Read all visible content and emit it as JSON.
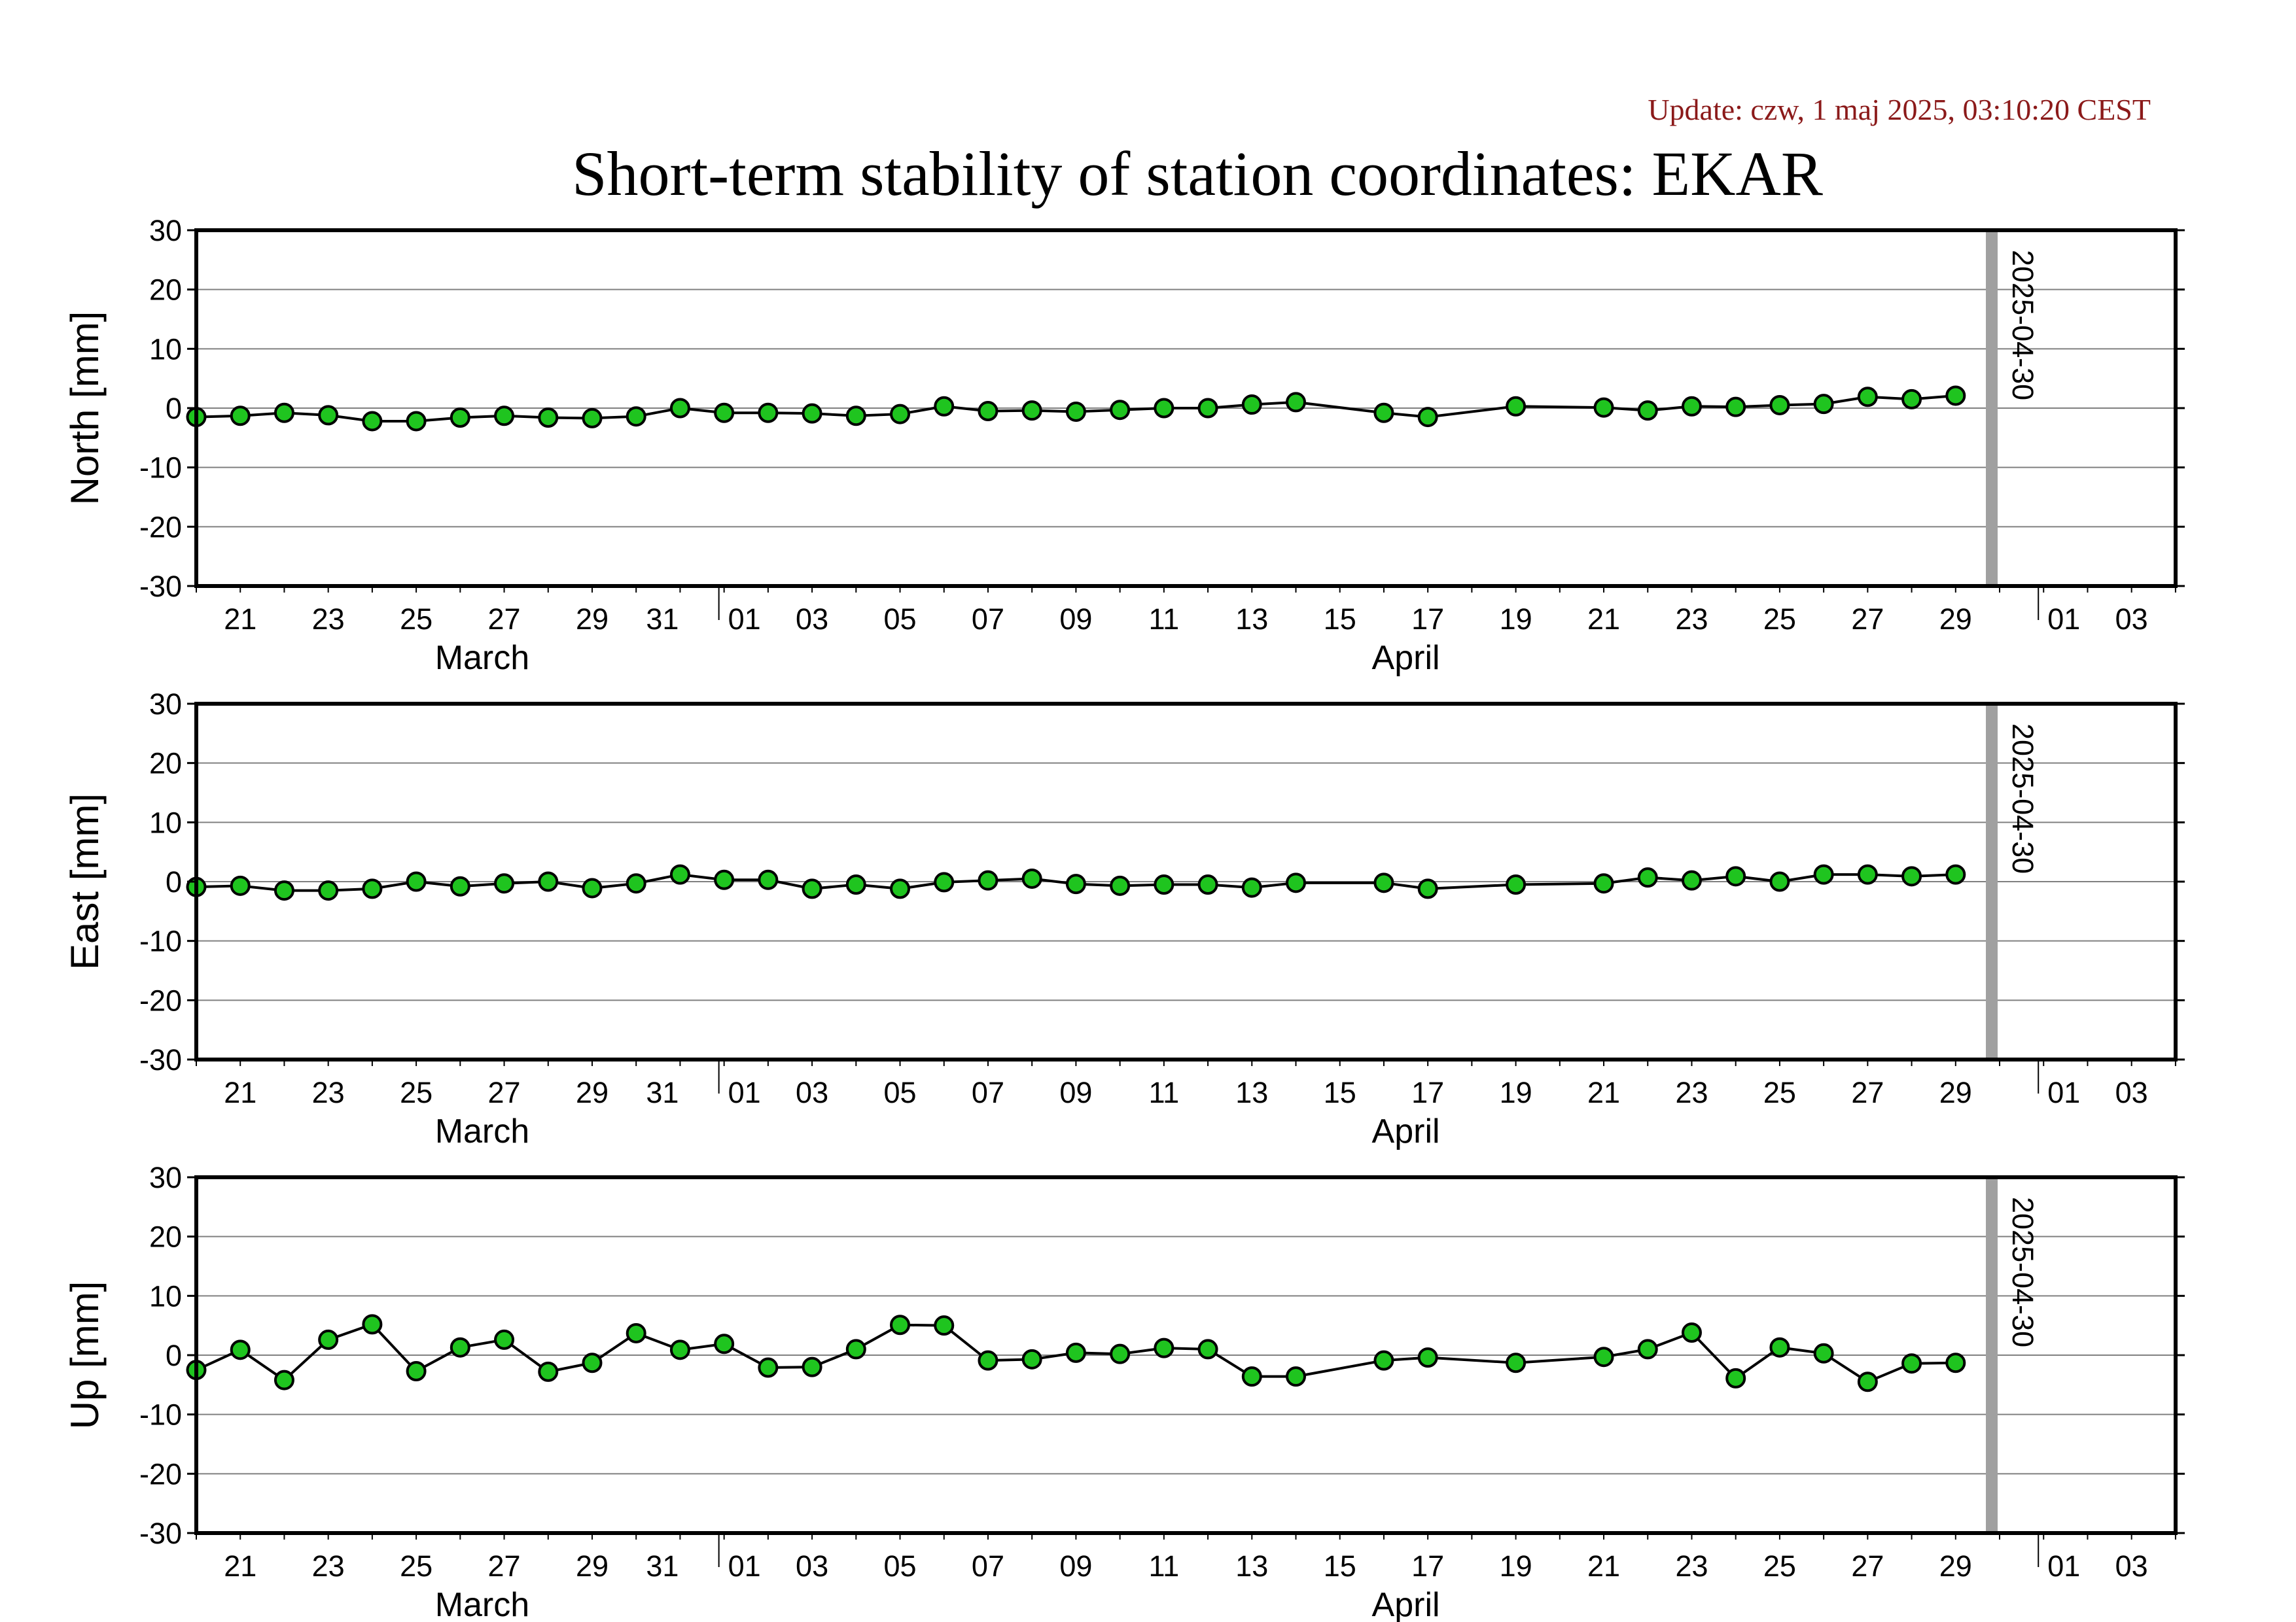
{
  "update_text": "Update: czw, 1 maj 2025, 03:10:20 CEST",
  "title": "Short-term stability of station coordinates: EKAR",
  "colors": {
    "marker_fill": "#1fc41f",
    "marker_stroke": "#000000",
    "line": "#000000",
    "grid": "#808080",
    "today_bar": "#a0a0a0",
    "update": "#8b1a1a"
  },
  "chart_data": [
    {
      "type": "line",
      "ylabel": "North [mm]",
      "ylim": [
        -30,
        30
      ],
      "yticks": [
        30,
        20,
        10,
        0,
        -10,
        -20,
        -30
      ],
      "x_range": [
        "2025-03-20",
        "2025-05-04"
      ],
      "x_tick_labels": [
        "21",
        "23",
        "25",
        "27",
        "29",
        "31",
        "01",
        "03",
        "05",
        "07",
        "09",
        "11",
        "13",
        "15",
        "17",
        "19",
        "21",
        "23",
        "25",
        "27",
        "29",
        "01",
        "03"
      ],
      "month_labels": [
        "March",
        "April"
      ],
      "marker_label": "2025-04-30",
      "grid": true,
      "x": [
        "03-20",
        "03-21",
        "03-22",
        "03-23",
        "03-24",
        "03-25",
        "03-26",
        "03-27",
        "03-28",
        "03-29",
        "03-30",
        "03-31",
        "04-01",
        "04-02",
        "04-03",
        "04-04",
        "04-05",
        "04-06",
        "04-07",
        "04-08",
        "04-09",
        "04-10",
        "04-11",
        "04-12",
        "04-13",
        "04-14",
        "04-16",
        "04-17",
        "04-19",
        "04-21",
        "04-22",
        "04-23",
        "04-24",
        "04-25",
        "04-26",
        "04-27",
        "04-28",
        "04-29"
      ],
      "values": [
        -1.5,
        -1.3,
        -0.8,
        -1.2,
        -2.2,
        -2.2,
        -1.6,
        -1.3,
        -1.6,
        -1.7,
        -1.4,
        0.0,
        -0.8,
        -0.8,
        -0.9,
        -1.3,
        -1.0,
        0.3,
        -0.5,
        -0.4,
        -0.6,
        -0.3,
        0.0,
        0.0,
        0.6,
        1.0,
        -0.8,
        -1.5,
        0.3,
        0.1,
        -0.4,
        0.3,
        0.2,
        0.5,
        0.7,
        1.9,
        1.5,
        2.1
      ]
    },
    {
      "type": "line",
      "ylabel": "East [mm]",
      "ylim": [
        -30,
        30
      ],
      "yticks": [
        30,
        20,
        10,
        0,
        -10,
        -20,
        -30
      ],
      "x_range": [
        "2025-03-20",
        "2025-05-04"
      ],
      "x_tick_labels": [
        "21",
        "23",
        "25",
        "27",
        "29",
        "31",
        "01",
        "03",
        "05",
        "07",
        "09",
        "11",
        "13",
        "15",
        "17",
        "19",
        "21",
        "23",
        "25",
        "27",
        "29",
        "01",
        "03"
      ],
      "month_labels": [
        "March",
        "April"
      ],
      "marker_label": "2025-04-30",
      "grid": true,
      "x": [
        "03-20",
        "03-21",
        "03-22",
        "03-23",
        "03-24",
        "03-25",
        "03-26",
        "03-27",
        "03-28",
        "03-29",
        "03-30",
        "03-31",
        "04-01",
        "04-02",
        "04-03",
        "04-04",
        "04-05",
        "04-06",
        "04-07",
        "04-08",
        "04-09",
        "04-10",
        "04-11",
        "04-12",
        "04-13",
        "04-14",
        "04-16",
        "04-17",
        "04-19",
        "04-21",
        "04-22",
        "04-23",
        "04-24",
        "04-25",
        "04-26",
        "04-27",
        "04-28",
        "04-29"
      ],
      "values": [
        -0.9,
        -0.7,
        -1.5,
        -1.5,
        -1.2,
        0.0,
        -0.8,
        -0.3,
        0.0,
        -1.1,
        -0.3,
        1.2,
        0.3,
        0.3,
        -1.2,
        -0.5,
        -1.2,
        -0.1,
        0.2,
        0.5,
        -0.4,
        -0.7,
        -0.5,
        -0.5,
        -1.0,
        -0.2,
        -0.2,
        -1.2,
        -0.5,
        -0.3,
        0.7,
        0.2,
        0.9,
        0.0,
        1.2,
        1.2,
        0.9,
        1.2
      ]
    },
    {
      "type": "line",
      "ylabel": "Up [mm]",
      "ylim": [
        -30,
        30
      ],
      "yticks": [
        30,
        20,
        10,
        0,
        -10,
        -20,
        -30
      ],
      "x_range": [
        "2025-03-20",
        "2025-05-04"
      ],
      "x_tick_labels": [
        "21",
        "23",
        "25",
        "27",
        "29",
        "31",
        "01",
        "03",
        "05",
        "07",
        "09",
        "11",
        "13",
        "15",
        "17",
        "19",
        "21",
        "23",
        "25",
        "27",
        "29",
        "01",
        "03"
      ],
      "month_labels": [
        "March",
        "April"
      ],
      "marker_label": "2025-04-30",
      "grid": true,
      "x": [
        "03-20",
        "03-21",
        "03-22",
        "03-23",
        "03-24",
        "03-25",
        "03-26",
        "03-27",
        "03-28",
        "03-29",
        "03-30",
        "03-31",
        "04-01",
        "04-02",
        "04-03",
        "04-04",
        "04-05",
        "04-06",
        "04-07",
        "04-08",
        "04-09",
        "04-10",
        "04-11",
        "04-12",
        "04-13",
        "04-14",
        "04-16",
        "04-17",
        "04-19",
        "04-21",
        "04-22",
        "04-23",
        "04-24",
        "04-25",
        "04-26",
        "04-27",
        "04-28",
        "04-29"
      ],
      "values": [
        -2.5,
        0.9,
        -4.2,
        2.6,
        5.2,
        -2.7,
        1.3,
        2.6,
        -2.8,
        -1.3,
        3.7,
        0.9,
        1.9,
        -2.1,
        -2.0,
        1.0,
        5.1,
        5.0,
        -0.9,
        -0.7,
        0.4,
        0.2,
        1.2,
        1.0,
        -3.6,
        -3.6,
        -0.9,
        -0.4,
        -1.3,
        -0.3,
        1.0,
        3.8,
        -3.9,
        1.3,
        0.3,
        -4.5,
        -1.4,
        -1.3
      ]
    }
  ]
}
